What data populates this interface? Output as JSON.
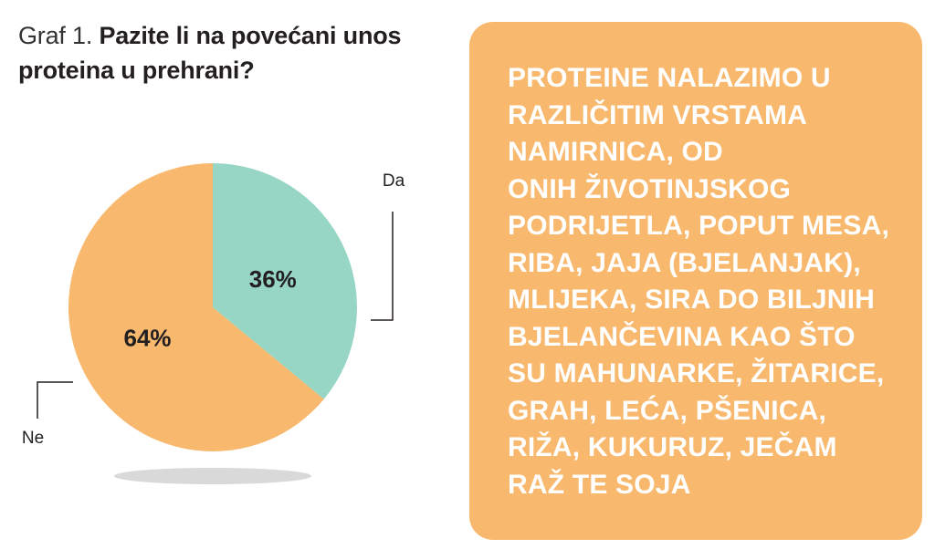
{
  "title": {
    "prefix": "Graf 1.",
    "question": "Pazite li na povećani unos proteina u prehrani?"
  },
  "colors": {
    "da": "#97d6c4",
    "ne": "#f8b96e",
    "box": "#f8b96e",
    "shadow": "#d9d9d9"
  },
  "chart_data": {
    "type": "pie",
    "categories": [
      "Da",
      "Ne"
    ],
    "values": [
      36,
      64
    ],
    "value_labels": [
      "36%",
      "64%"
    ],
    "legend": "none"
  },
  "info_box": {
    "text": "PROTEINE NALAZIMO U\nRAZLIČITIM VRSTAMA\nNAMIRNICA, OD\nONIH ŽIVOTINJSKOG\nPODRIJETLA, POPUT MESA,\nRIBA, JAJA (BJELANJAK),\nMLIJEKA, SIRA DO BILJNIH\nBJELANČEVINA KAO ŠTO\nSU MAHUNARKE, ŽITARICE,\nGRAH, LEĆA, PŠENICA,\nRIŽA, KUKURUZ, JEČAM\nRAŽ TE SOJA"
  }
}
